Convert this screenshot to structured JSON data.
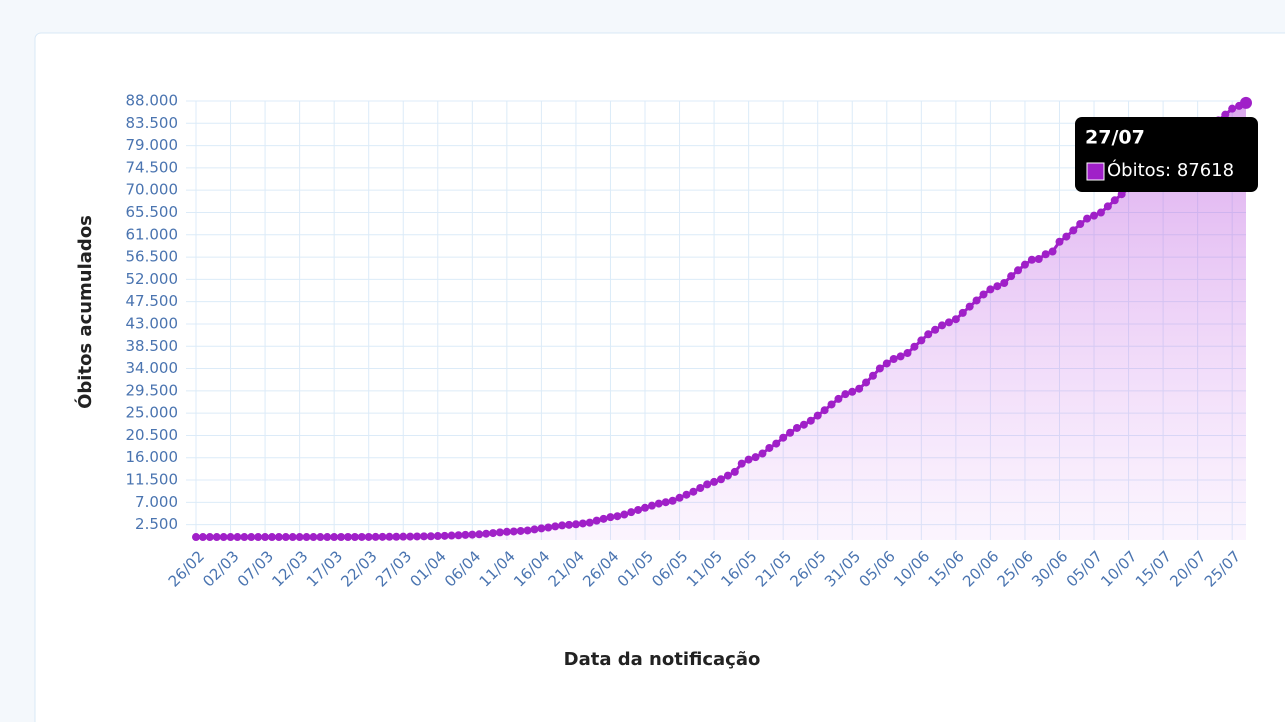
{
  "chart_data": {
    "type": "line",
    "x_label": "Data da notificação",
    "y_label": "Óbitos acumulados",
    "categories": [
      "26/02",
      null,
      null,
      null,
      null,
      "02/03",
      null,
      null,
      null,
      null,
      "07/03",
      null,
      null,
      null,
      null,
      "12/03",
      null,
      null,
      null,
      null,
      "17/03",
      null,
      null,
      null,
      null,
      "22/03",
      null,
      null,
      null,
      null,
      "27/03",
      null,
      null,
      null,
      null,
      "01/04",
      null,
      null,
      null,
      null,
      "06/04",
      null,
      null,
      null,
      null,
      "11/04",
      null,
      null,
      null,
      null,
      "16/04",
      null,
      null,
      null,
      null,
      "21/04",
      null,
      null,
      null,
      null,
      "26/04",
      null,
      null,
      null,
      null,
      "01/05",
      null,
      null,
      null,
      null,
      "06/05",
      null,
      null,
      null,
      null,
      "11/05",
      null,
      null,
      null,
      null,
      "16/05",
      null,
      null,
      null,
      null,
      "21/05",
      null,
      null,
      null,
      null,
      "26/05",
      null,
      null,
      null,
      null,
      "31/05",
      null,
      null,
      null,
      null,
      "05/06",
      null,
      null,
      null,
      null,
      "10/06",
      null,
      null,
      null,
      null,
      "15/06",
      null,
      null,
      null,
      null,
      "20/06",
      null,
      null,
      null,
      null,
      "25/06",
      null,
      null,
      null,
      null,
      "30/06",
      null,
      null,
      null,
      null,
      "05/07",
      null,
      null,
      null,
      null,
      "10/07",
      null,
      null,
      null,
      null,
      "15/07",
      null,
      null,
      null,
      null,
      "20/07",
      null,
      null,
      null,
      null,
      "25/07",
      null,
      null
    ],
    "series": [
      {
        "name": "Óbitos",
        "color": "#a020c8",
        "values": [
          0,
          0,
          0,
          0,
          0,
          0,
          0,
          0,
          0,
          0,
          0,
          0,
          0,
          0,
          0,
          0,
          0,
          0,
          0,
          0,
          1,
          3,
          4,
          7,
          11,
          18,
          25,
          34,
          46,
          59,
          77,
          92,
          111,
          136,
          159,
          201,
          240,
          299,
          359,
          432,
          486,
          553,
          667,
          800,
          941,
          1056,
          1124,
          1223,
          1328,
          1532,
          1736,
          1924,
          2141,
          2347,
          2462,
          2575,
          2741,
          2906,
          3313,
          3670,
          4016,
          4205,
          4543,
          5017,
          5466,
          5901,
          6329,
          6750,
          7025,
          7321,
          7921,
          8536,
          9146,
          9897,
          10627,
          11123,
          11653,
          12400,
          13149,
          14817,
          15633,
          16118,
          16853,
          17971,
          18859,
          20047,
          21048,
          22013,
          22666,
          23473,
          24512,
          25598,
          26754,
          27878,
          28834,
          29314,
          29937,
          31199,
          32548,
          34021,
          35026,
          35930,
          36455,
          37134,
          38406,
          39680,
          40919,
          41828,
          42720,
          43332,
          43959,
          45241,
          46510,
          47748,
          48954,
          49976,
          50617,
          51271,
          52645,
          53830,
          54971,
          55961,
          56109,
          57070,
          57622,
          59594,
          60632,
          61884,
          63174,
          64265,
          64867,
          65487,
          66741,
          67964,
          69184,
          70398,
          71469,
          72100,
          72833,
          74133,
          75366,
          76688,
          77851,
          78772,
          79488,
          80120,
          81487,
          82771,
          84082,
          85238,
          86449,
          87004,
          87618
        ]
      }
    ],
    "ylim": [
      -600,
      88000
    ],
    "yticks": [
      {
        "value": 2500,
        "label": "2.500"
      },
      {
        "value": 7000,
        "label": "7.000"
      },
      {
        "value": 11500,
        "label": "11.500"
      },
      {
        "value": 16000,
        "label": "16.000"
      },
      {
        "value": 20500,
        "label": "20.500"
      },
      {
        "value": 25000,
        "label": "25.000"
      },
      {
        "value": 29500,
        "label": "29.500"
      },
      {
        "value": 34000,
        "label": "34.000"
      },
      {
        "value": 38500,
        "label": "38.500"
      },
      {
        "value": 43000,
        "label": "43.000"
      },
      {
        "value": 47500,
        "label": "47.500"
      },
      {
        "value": 52000,
        "label": "52.000"
      },
      {
        "value": 56500,
        "label": "56.500"
      },
      {
        "value": 61000,
        "label": "61.000"
      },
      {
        "value": 65500,
        "label": "65.500"
      },
      {
        "value": 70000,
        "label": "70.000"
      },
      {
        "value": 74500,
        "label": "74.500"
      },
      {
        "value": 79000,
        "label": "79.000"
      },
      {
        "value": 83500,
        "label": "83.500"
      },
      {
        "value": 88000,
        "label": "88.000"
      }
    ],
    "grid": true,
    "tooltip": {
      "title": "27/07",
      "text": "Óbitos: 87618"
    }
  }
}
